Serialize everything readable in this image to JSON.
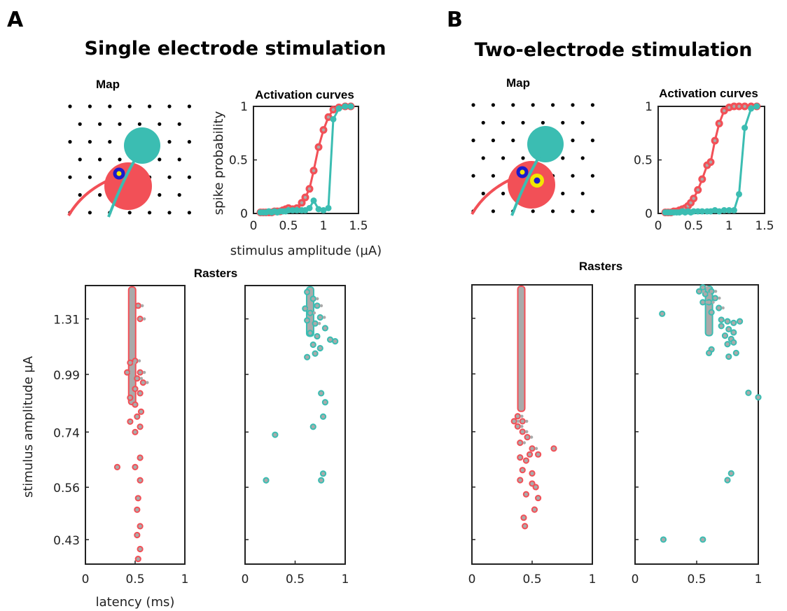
{
  "figure": {
    "panels": [
      {
        "letter": "A",
        "title": "Single electrode stimulation"
      },
      {
        "letter": "B",
        "title": "Two-electrode stimulation"
      }
    ],
    "map_label": "Map",
    "rasters_label": "Rasters"
  },
  "colors": {
    "red": "#f25057",
    "teal": "#3bbdb2",
    "gray": "#aaaaaa",
    "blue": "#1a1acc",
    "yellow": "#f2e600"
  },
  "chart_data": [
    {
      "id": "activation-A",
      "type": "line",
      "title": "Activation curves",
      "xlabel": "stimulus amplitude (µA)",
      "ylabel": "spike probability",
      "xlim": [
        0,
        1.5
      ],
      "ylim": [
        0,
        1
      ],
      "xticks": [
        "0",
        "0.5",
        "1",
        "1.5"
      ],
      "yticks": [
        "0",
        "0.5",
        "1"
      ],
      "series": [
        {
          "color": "red",
          "x": [
            0.1,
            0.14,
            0.18,
            0.22,
            0.26,
            0.3,
            0.34,
            0.38,
            0.42,
            0.46,
            0.5,
            0.56,
            0.62,
            0.69,
            0.74,
            0.8,
            0.86,
            0.93,
            1.0,
            1.07,
            1.14,
            1.22,
            1.31,
            1.39
          ],
          "y": [
            0.01,
            0.01,
            0.01,
            0.01,
            0.01,
            0.02,
            0.02,
            0.02,
            0.03,
            0.04,
            0.05,
            0.04,
            0.05,
            0.1,
            0.15,
            0.23,
            0.4,
            0.62,
            0.78,
            0.9,
            0.97,
            0.99,
            1.0,
            1.0
          ]
        },
        {
          "color": "teal",
          "x": [
            0.1,
            0.14,
            0.18,
            0.22,
            0.26,
            0.3,
            0.34,
            0.38,
            0.42,
            0.46,
            0.5,
            0.56,
            0.62,
            0.69,
            0.74,
            0.8,
            0.86,
            0.93,
            1.0,
            1.07,
            1.14,
            1.22,
            1.31,
            1.39
          ],
          "y": [
            0.01,
            0.01,
            0.01,
            0.02,
            0.01,
            0.02,
            0.01,
            0.02,
            0.02,
            0.02,
            0.03,
            0.03,
            0.03,
            0.03,
            0.03,
            0.05,
            0.12,
            0.04,
            0.03,
            0.05,
            0.88,
            0.98,
            1.0,
            1.0
          ]
        }
      ]
    },
    {
      "id": "activation-B",
      "type": "line",
      "title": "Activation curves",
      "xlim": [
        0,
        1.5
      ],
      "ylim": [
        0,
        1
      ],
      "xticks": [
        "0",
        "0.5",
        "1",
        "1.5"
      ],
      "yticks": [
        "0",
        "0.5",
        "1"
      ],
      "series": [
        {
          "color": "red",
          "x": [
            0.1,
            0.14,
            0.18,
            0.22,
            0.26,
            0.3,
            0.34,
            0.38,
            0.42,
            0.46,
            0.5,
            0.56,
            0.62,
            0.69,
            0.74,
            0.8,
            0.86,
            0.93,
            1.0,
            1.07,
            1.14,
            1.22,
            1.31,
            1.39
          ],
          "y": [
            0.01,
            0.01,
            0.01,
            0.02,
            0.02,
            0.03,
            0.04,
            0.05,
            0.07,
            0.1,
            0.14,
            0.22,
            0.32,
            0.45,
            0.48,
            0.68,
            0.84,
            0.96,
            0.99,
            1.0,
            1.0,
            1.0,
            1.0,
            1.0
          ]
        },
        {
          "color": "teal",
          "x": [
            0.1,
            0.14,
            0.18,
            0.22,
            0.26,
            0.3,
            0.34,
            0.38,
            0.42,
            0.46,
            0.5,
            0.56,
            0.62,
            0.69,
            0.74,
            0.8,
            0.86,
            0.93,
            1.0,
            1.07,
            1.14,
            1.22,
            1.31,
            1.39
          ],
          "y": [
            0.01,
            0.01,
            0.01,
            0.01,
            0.01,
            0.01,
            0.02,
            0.01,
            0.02,
            0.01,
            0.02,
            0.02,
            0.02,
            0.02,
            0.02,
            0.03,
            0.02,
            0.03,
            0.03,
            0.03,
            0.18,
            0.8,
            0.98,
            1.0
          ]
        }
      ]
    },
    {
      "id": "raster-A-red",
      "type": "scatter",
      "xlabel": "latency (ms)",
      "ylabel": "stimulus amplitude µA",
      "xlim": [
        0,
        1
      ],
      "xticks": [
        "0",
        "0.5",
        "1"
      ],
      "yticks": [
        "1.31",
        "0.99",
        "0.74",
        "0.56",
        "0.43"
      ],
      "color": "red",
      "column_x": 0.47,
      "column_top": 1.55,
      "column_bottom": 0.85,
      "points": [
        [
          0.53,
          1.4
        ],
        [
          0.55,
          1.31
        ],
        [
          0.45,
          1.05
        ],
        [
          0.5,
          1.06
        ],
        [
          0.42,
          1.0
        ],
        [
          0.55,
          1.0
        ],
        [
          0.52,
          0.97
        ],
        [
          0.58,
          0.95
        ],
        [
          0.5,
          0.92
        ],
        [
          0.55,
          0.9
        ],
        [
          0.45,
          0.88
        ],
        [
          0.5,
          0.85
        ],
        [
          0.56,
          0.82
        ],
        [
          0.52,
          0.8
        ],
        [
          0.45,
          0.78
        ],
        [
          0.55,
          0.76
        ],
        [
          0.5,
          0.74
        ],
        [
          0.55,
          0.65
        ],
        [
          0.32,
          0.62
        ],
        [
          0.5,
          0.62
        ],
        [
          0.55,
          0.58
        ],
        [
          0.53,
          0.53
        ],
        [
          0.52,
          0.5
        ],
        [
          0.55,
          0.46
        ],
        [
          0.52,
          0.44
        ],
        [
          0.55,
          0.41
        ],
        [
          0.53,
          0.39
        ]
      ]
    },
    {
      "id": "raster-A-teal",
      "type": "scatter",
      "xlim": [
        0,
        1
      ],
      "xticks": [
        "0",
        "0.5",
        "1"
      ],
      "color": "teal",
      "column_x": 0.65,
      "column_top": 1.55,
      "column_bottom": 1.2,
      "points": [
        [
          0.62,
          1.5
        ],
        [
          0.68,
          1.45
        ],
        [
          0.72,
          1.4
        ],
        [
          0.6,
          1.38
        ],
        [
          0.65,
          1.35
        ],
        [
          0.75,
          1.32
        ],
        [
          0.62,
          1.3
        ],
        [
          0.7,
          1.28
        ],
        [
          0.8,
          1.25
        ],
        [
          0.65,
          1.22
        ],
        [
          0.72,
          1.2
        ],
        [
          0.85,
          1.18
        ],
        [
          0.9,
          1.17
        ],
        [
          0.68,
          1.15
        ],
        [
          0.75,
          1.13
        ],
        [
          0.7,
          1.1
        ],
        [
          0.62,
          1.08
        ],
        [
          0.76,
          0.9
        ],
        [
          0.8,
          0.86
        ],
        [
          0.78,
          0.8
        ],
        [
          0.68,
          0.76
        ],
        [
          0.3,
          0.73
        ],
        [
          0.78,
          0.6
        ],
        [
          0.76,
          0.58
        ],
        [
          0.21,
          0.58
        ]
      ]
    },
    {
      "id": "raster-B-red",
      "type": "scatter",
      "xlim": [
        0,
        1
      ],
      "xticks": [
        "0",
        "0.5",
        "1"
      ],
      "color": "red",
      "column_x": 0.41,
      "column_top": 1.55,
      "column_bottom": 0.82,
      "points": [
        [
          0.38,
          0.8
        ],
        [
          0.35,
          0.78
        ],
        [
          0.42,
          0.78
        ],
        [
          0.38,
          0.76
        ],
        [
          0.42,
          0.74
        ],
        [
          0.46,
          0.72
        ],
        [
          0.4,
          0.7
        ],
        [
          0.5,
          0.68
        ],
        [
          0.48,
          0.66
        ],
        [
          0.4,
          0.65
        ],
        [
          0.45,
          0.64
        ],
        [
          0.55,
          0.66
        ],
        [
          0.68,
          0.68
        ],
        [
          0.42,
          0.61
        ],
        [
          0.5,
          0.6
        ],
        [
          0.4,
          0.58
        ],
        [
          0.5,
          0.57
        ],
        [
          0.53,
          0.56
        ],
        [
          0.45,
          0.54
        ],
        [
          0.55,
          0.53
        ],
        [
          0.52,
          0.5
        ],
        [
          0.43,
          0.48
        ],
        [
          0.44,
          0.46
        ]
      ]
    },
    {
      "id": "raster-B-teal",
      "type": "scatter",
      "xlim": [
        0,
        1
      ],
      "xticks": [
        "0",
        "0.5",
        "1"
      ],
      "color": "teal",
      "column_x": 0.6,
      "column_top": 1.55,
      "column_bottom": 1.2,
      "points": [
        [
          0.55,
          1.53
        ],
        [
          0.52,
          1.5
        ],
        [
          0.57,
          1.48
        ],
        [
          0.62,
          1.5
        ],
        [
          0.65,
          1.45
        ],
        [
          0.6,
          1.42
        ],
        [
          0.55,
          1.42
        ],
        [
          0.68,
          1.38
        ],
        [
          0.62,
          1.35
        ],
        [
          0.7,
          1.3
        ],
        [
          0.75,
          1.29
        ],
        [
          0.8,
          1.28
        ],
        [
          0.85,
          1.29
        ],
        [
          0.7,
          1.26
        ],
        [
          0.76,
          1.24
        ],
        [
          0.8,
          1.22
        ],
        [
          0.73,
          1.2
        ],
        [
          0.78,
          1.18
        ],
        [
          0.8,
          1.16
        ],
        [
          0.75,
          1.15
        ],
        [
          0.62,
          1.12
        ],
        [
          0.6,
          1.1
        ],
        [
          0.82,
          1.1
        ],
        [
          0.76,
          1.08
        ],
        [
          0.22,
          1.34
        ],
        [
          0.92,
          0.9
        ],
        [
          1.0,
          0.88
        ],
        [
          0.78,
          0.6
        ],
        [
          0.75,
          0.58
        ],
        [
          0.23,
          0.43
        ],
        [
          0.55,
          0.43
        ]
      ]
    }
  ]
}
